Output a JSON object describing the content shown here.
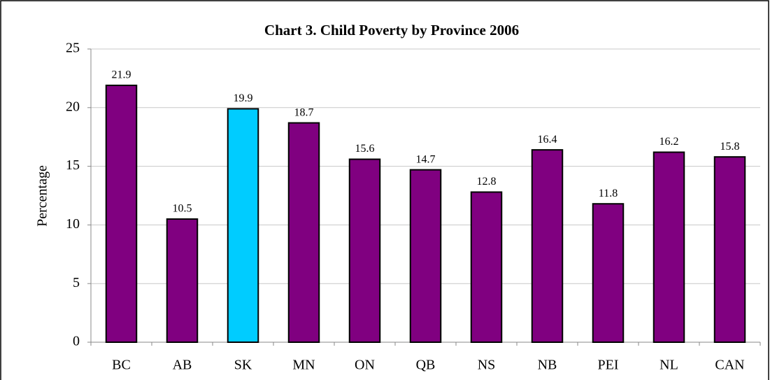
{
  "chart_data": {
    "type": "bar",
    "title": "Chart 3. Child Poverty by Province 2006",
    "y_label": "Percentage",
    "categories": [
      "BC",
      "AB",
      "SK",
      "MN",
      "ON",
      "QB",
      "NS",
      "NB",
      "PEI",
      "NL",
      "CAN"
    ],
    "values": [
      21.9,
      10.5,
      19.9,
      18.7,
      15.6,
      14.7,
      12.8,
      16.4,
      11.8,
      16.2,
      15.8
    ],
    "colors": [
      "#800080",
      "#800080",
      "#00ccff",
      "#800080",
      "#800080",
      "#800080",
      "#800080",
      "#800080",
      "#800080",
      "#800080",
      "#800080"
    ],
    "ylim": [
      0,
      25
    ],
    "yticks": [
      0,
      5,
      10,
      15,
      20,
      25
    ],
    "grid": true
  }
}
